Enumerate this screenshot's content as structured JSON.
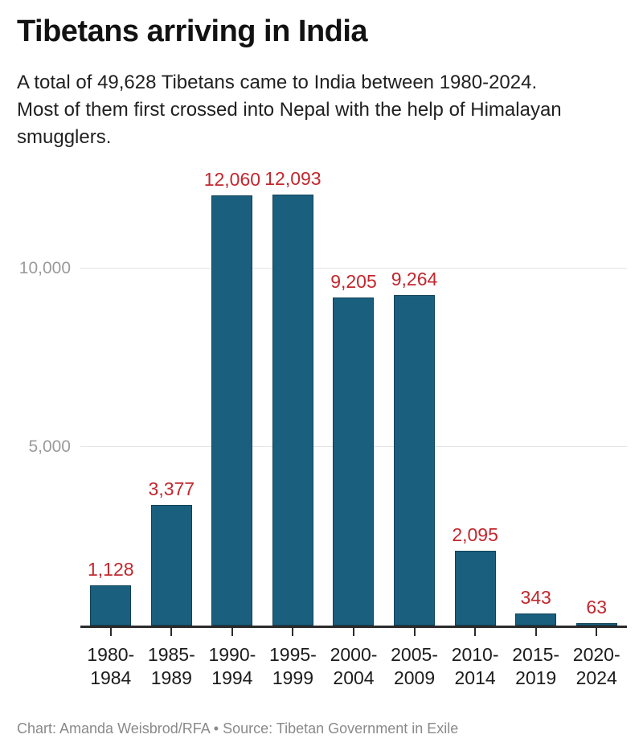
{
  "header": {
    "title": "Tibetans arriving in India",
    "subtitle_lines": [
      "A total of 49,628 Tibetans came to India between 1980-2024.",
      "Most of them first crossed into Nepal with the help of Himalayan",
      "smugglers."
    ]
  },
  "chart_data": {
    "type": "bar",
    "title": "Tibetans arriving in India",
    "categories": [
      "1980-1984",
      "1985-1989",
      "1990-1994",
      "1995-1999",
      "2000-2004",
      "2005-2009",
      "2010-2014",
      "2015-2019",
      "2020-2024"
    ],
    "tick_labels": [
      [
        "1980-",
        "1984"
      ],
      [
        "1985-",
        "1989"
      ],
      [
        "1990-",
        "1994"
      ],
      [
        "1995-",
        "1999"
      ],
      [
        "2000-",
        "2004"
      ],
      [
        "2005-",
        "2009"
      ],
      [
        "2010-",
        "2014"
      ],
      [
        "2015-",
        "2019"
      ],
      [
        "2020-",
        "2024"
      ]
    ],
    "values": [
      1128,
      3377,
      12060,
      12093,
      9205,
      9264,
      2095,
      343,
      63
    ],
    "value_labels": [
      "1,128",
      "3,377",
      "12,060",
      "12,093",
      "9,205",
      "9,264",
      "2,095",
      "343",
      "63"
    ],
    "xlabel": "",
    "ylabel": "",
    "y_axis": {
      "ticks": [
        {
          "value": 5000,
          "label": "5,000"
        },
        {
          "value": 10000,
          "label": "10,000"
        }
      ],
      "range": [
        0,
        12580
      ]
    },
    "grid": true,
    "legend": "none",
    "colors": {
      "bar_fill": "#1A5F7E",
      "bar_border": "#0F4258",
      "value_label": "#C2272D",
      "grid_line": "#E3E3E3",
      "axis_line": "#2B2B2B",
      "y_tick_label": "#9B9B9B",
      "x_tick_label": "#1C1C1C"
    }
  },
  "footer": {
    "credit": "Chart: Amanda Weisbrod/RFA • Source: Tibetan Government in Exile"
  }
}
